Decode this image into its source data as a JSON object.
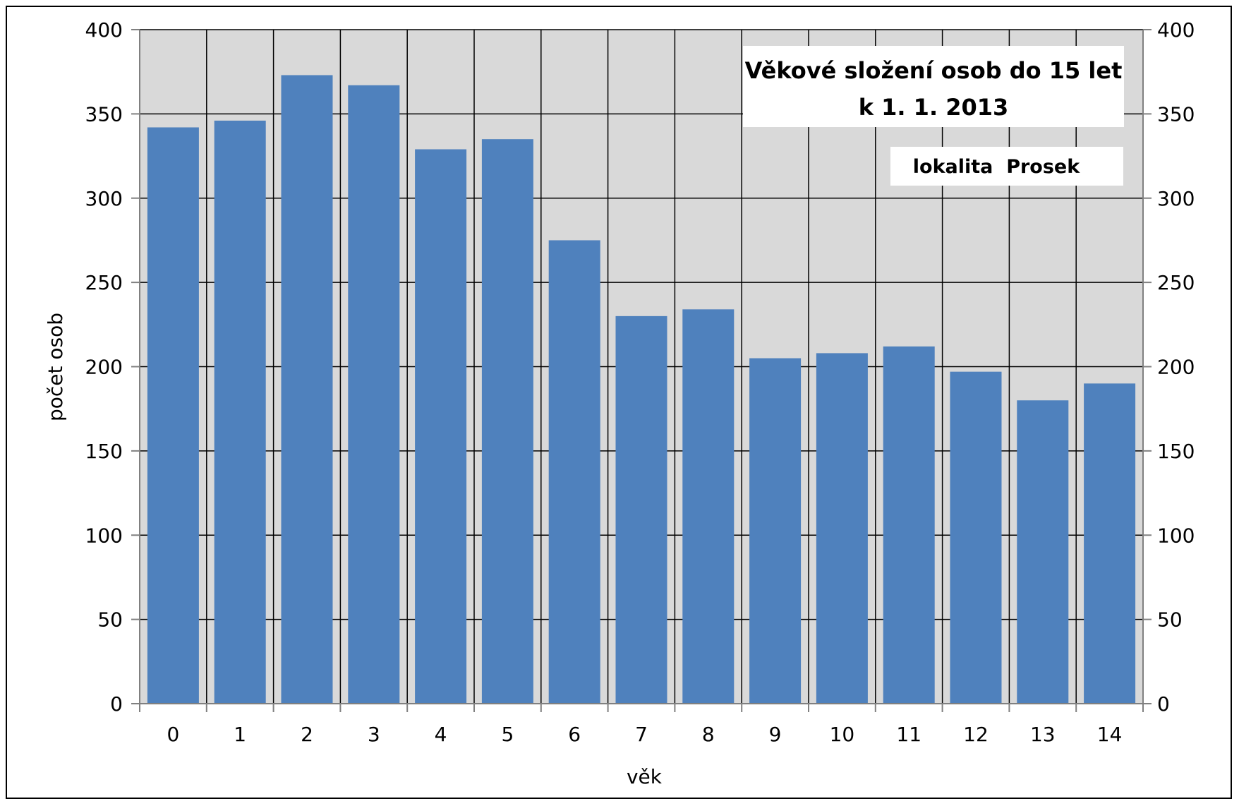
{
  "chart_data": {
    "type": "bar",
    "title_line1": "Věkové složení osob do 15 let",
    "title_line2": "k 1. 1. 2013",
    "subtitle": "lokalita  Prosek",
    "xlabel": "věk",
    "ylabel": "počet osob",
    "categories": [
      "0",
      "1",
      "2",
      "3",
      "4",
      "5",
      "6",
      "7",
      "8",
      "9",
      "10",
      "11",
      "12",
      "13",
      "14"
    ],
    "values": [
      342,
      346,
      373,
      367,
      329,
      335,
      275,
      230,
      234,
      205,
      208,
      212,
      197,
      180,
      190
    ],
    "ylim": [
      0,
      400
    ],
    "yticks": [
      0,
      50,
      100,
      150,
      200,
      250,
      300,
      350,
      400
    ],
    "secondary_y_axis": true,
    "grid": true,
    "legend": "none",
    "colors": {
      "bar": "#4f81bd",
      "plot_background": "#d9d9d9",
      "gridline": "#000000"
    }
  }
}
